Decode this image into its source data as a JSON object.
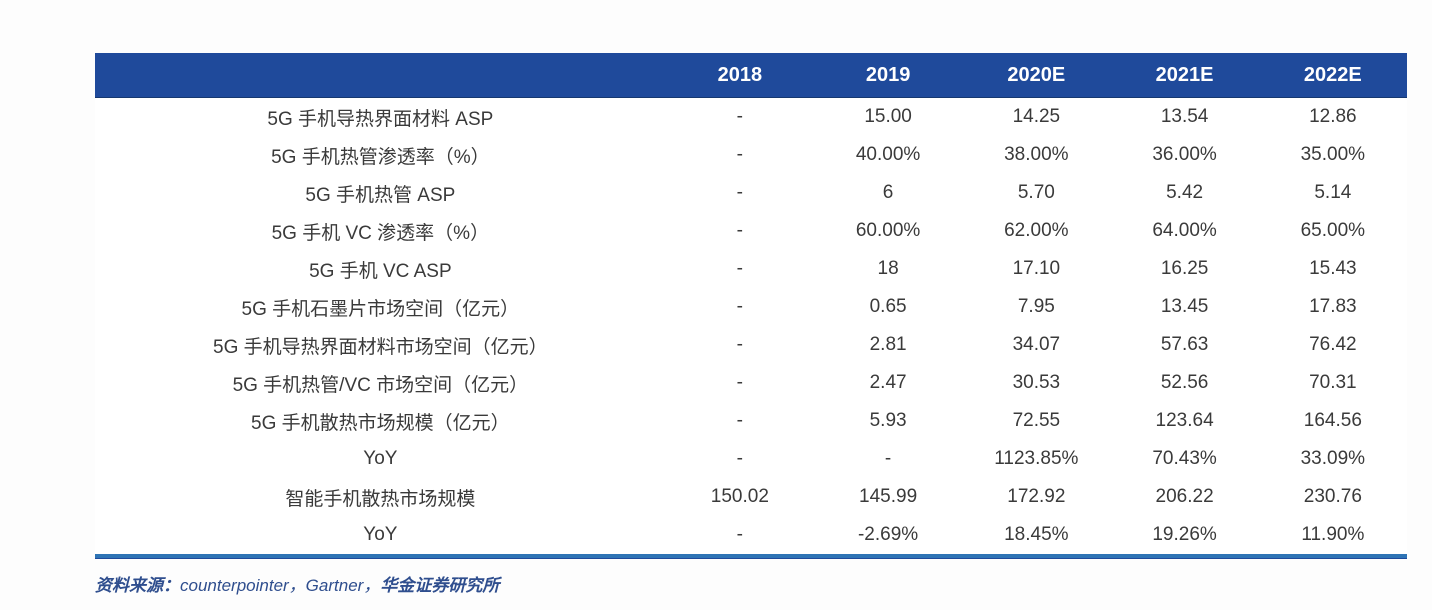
{
  "table": {
    "columns": [
      "",
      "2018",
      "2019",
      "2020E",
      "2021E",
      "2022E"
    ],
    "rows": [
      {
        "label": "5G 手机导热界面材料 ASP",
        "values": [
          "-",
          "15.00",
          "14.25",
          "13.54",
          "12.86"
        ]
      },
      {
        "label": "5G 手机热管渗透率（%）",
        "values": [
          "-",
          "40.00%",
          "38.00%",
          "36.00%",
          "35.00%"
        ]
      },
      {
        "label": "5G 手机热管 ASP",
        "values": [
          "-",
          "6",
          "5.70",
          "5.42",
          "5.14"
        ]
      },
      {
        "label": "5G 手机 VC 渗透率（%）",
        "values": [
          "-",
          "60.00%",
          "62.00%",
          "64.00%",
          "65.00%"
        ]
      },
      {
        "label": "5G 手机 VC ASP",
        "values": [
          "-",
          "18",
          "17.10",
          "16.25",
          "15.43"
        ]
      },
      {
        "label": "5G 手机石墨片市场空间（亿元）",
        "values": [
          "-",
          "0.65",
          "7.95",
          "13.45",
          "17.83"
        ]
      },
      {
        "label": "5G 手机导热界面材料市场空间（亿元）",
        "values": [
          "-",
          "2.81",
          "34.07",
          "57.63",
          "76.42"
        ]
      },
      {
        "label": "5G 手机热管/VC 市场空间（亿元）",
        "values": [
          "-",
          "2.47",
          "30.53",
          "52.56",
          "70.31"
        ]
      },
      {
        "label": "5G 手机散热市场规模（亿元）",
        "values": [
          "-",
          "5.93",
          "72.55",
          "123.64",
          "164.56"
        ]
      },
      {
        "label": "YoY",
        "values": [
          "-",
          "-",
          "1123.85%",
          "70.43%",
          "33.09%"
        ]
      },
      {
        "label": "智能手机散热市场规模",
        "values": [
          "150.02",
          "145.99",
          "172.92",
          "206.22",
          "230.76"
        ]
      },
      {
        "label": "YoY",
        "values": [
          "-",
          "-2.69%",
          "18.45%",
          "19.26%",
          "11.90%"
        ]
      }
    ]
  },
  "footer": {
    "prefix": "资料来源：",
    "agencies": "counterpointer，Gartner，",
    "institute": "华金证券研究所"
  },
  "colors": {
    "header_bg": "#1F4A9B",
    "header_text": "#FFFFFF",
    "bottom_border": "#2E74B5",
    "body_text": "#3A3A3A",
    "source_text": "#2F4E8E"
  },
  "chart_data": {
    "type": "table",
    "title": "",
    "columns": [
      "",
      "2018",
      "2019",
      "2020E",
      "2021E",
      "2022E"
    ],
    "rows": [
      [
        "5G 手机导热界面材料 ASP",
        "-",
        "15.00",
        "14.25",
        "13.54",
        "12.86"
      ],
      [
        "5G 手机热管渗透率（%）",
        "-",
        "40.00%",
        "38.00%",
        "36.00%",
        "35.00%"
      ],
      [
        "5G 手机热管 ASP",
        "-",
        "6",
        "5.70",
        "5.42",
        "5.14"
      ],
      [
        "5G 手机 VC 渗透率（%）",
        "-",
        "60.00%",
        "62.00%",
        "64.00%",
        "65.00%"
      ],
      [
        "5G 手机 VC ASP",
        "-",
        "18",
        "17.10",
        "16.25",
        "15.43"
      ],
      [
        "5G 手机石墨片市场空间（亿元）",
        "-",
        "0.65",
        "7.95",
        "13.45",
        "17.83"
      ],
      [
        "5G 手机导热界面材料市场空间（亿元）",
        "-",
        "2.81",
        "34.07",
        "57.63",
        "76.42"
      ],
      [
        "5G 手机热管/VC 市场空间（亿元）",
        "-",
        "2.47",
        "30.53",
        "52.56",
        "70.31"
      ],
      [
        "5G 手机散热市场规模（亿元）",
        "-",
        "5.93",
        "72.55",
        "123.64",
        "164.56"
      ],
      [
        "YoY",
        "-",
        "-",
        "1123.85%",
        "70.43%",
        "33.09%"
      ],
      [
        "智能手机散热市场规模",
        "150.02",
        "145.99",
        "172.92",
        "206.22",
        "230.76"
      ],
      [
        "YoY",
        "-",
        "-2.69%",
        "18.45%",
        "19.26%",
        "11.90%"
      ]
    ]
  }
}
